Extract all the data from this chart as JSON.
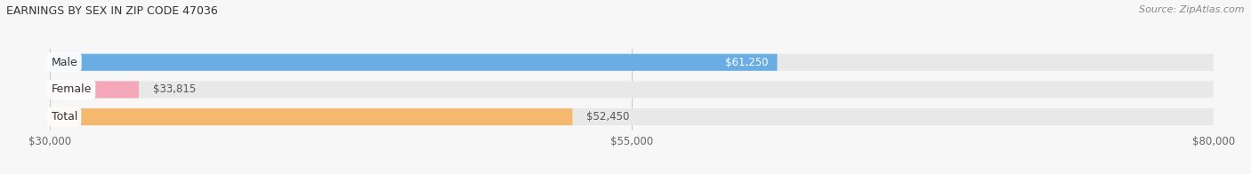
{
  "title": "EARNINGS BY SEX IN ZIP CODE 47036",
  "source": "Source: ZipAtlas.com",
  "categories": [
    "Male",
    "Female",
    "Total"
  ],
  "values": [
    61250,
    33815,
    52450
  ],
  "bar_colors": [
    "#6aade4",
    "#f4a7b9",
    "#f5b870"
  ],
  "label_colors": [
    "#ffffff",
    "#555555",
    "#555555"
  ],
  "label_inside": [
    true,
    false,
    false
  ],
  "x_min": 30000,
  "x_max": 80000,
  "x_ticks": [
    30000,
    55000,
    80000
  ],
  "x_tick_labels": [
    "$30,000",
    "$55,000",
    "$80,000"
  ],
  "bar_height": 0.62,
  "bar_bg_color": "#e8e8e8",
  "fig_bg_color": "#f7f7f7",
  "figsize": [
    14.06,
    1.96
  ],
  "dpi": 100
}
